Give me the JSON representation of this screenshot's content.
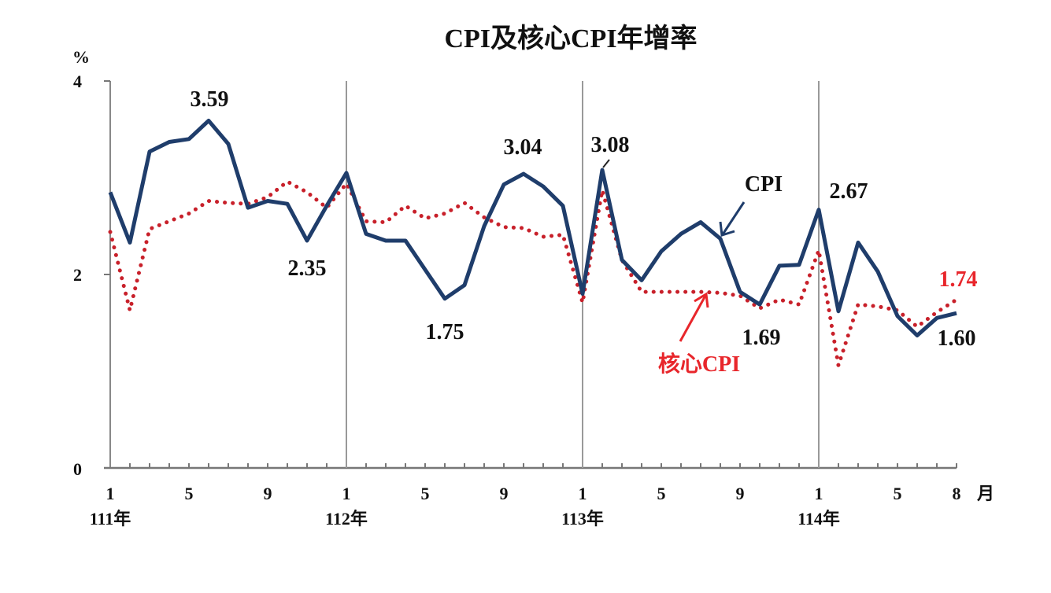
{
  "chart_data": {
    "type": "line",
    "title": "CPI及核心CPI年增率",
    "ylabel": "%",
    "xlabel": "月",
    "ylim": [
      0,
      4
    ],
    "yticks": [
      0,
      2,
      4
    ],
    "grid": false,
    "year_separators": [
      "111年",
      "112年",
      "113年",
      "114年"
    ],
    "x_tick_labels": [
      "1",
      "5",
      "9",
      "1",
      "5",
      "9",
      "1",
      "5",
      "9",
      "1",
      "5",
      "8"
    ],
    "x": [
      "111/1",
      "111/2",
      "111/3",
      "111/4",
      "111/5",
      "111/6",
      "111/7",
      "111/8",
      "111/9",
      "111/10",
      "111/11",
      "111/12",
      "112/1",
      "112/2",
      "112/3",
      "112/4",
      "112/5",
      "112/6",
      "112/7",
      "112/8",
      "112/9",
      "112/10",
      "112/11",
      "112/12",
      "113/1",
      "113/2",
      "113/3",
      "113/4",
      "113/5",
      "113/6",
      "113/7",
      "113/8",
      "113/9",
      "113/10",
      "113/11",
      "113/12",
      "114/1",
      "114/2",
      "114/3",
      "114/4",
      "114/5",
      "114/6",
      "114/7",
      "114/8"
    ],
    "series": [
      {
        "name": "CPI",
        "color": "#1f3d6b",
        "style": "solid",
        "values": [
          2.85,
          2.33,
          3.27,
          3.37,
          3.4,
          3.59,
          3.35,
          2.69,
          2.76,
          2.73,
          2.35,
          2.71,
          3.05,
          2.42,
          2.35,
          2.35,
          2.05,
          1.75,
          1.89,
          2.5,
          2.93,
          3.04,
          2.91,
          2.71,
          1.8,
          3.08,
          2.15,
          1.94,
          2.24,
          2.42,
          2.54,
          2.37,
          1.82,
          1.69,
          2.09,
          2.1,
          2.67,
          1.62,
          2.33,
          2.03,
          1.57,
          1.37,
          1.55,
          1.6
        ]
      },
      {
        "name": "核心CPI",
        "color": "#c8202a",
        "style": "dotted",
        "values": [
          2.44,
          1.63,
          2.47,
          2.55,
          2.63,
          2.76,
          2.74,
          2.73,
          2.8,
          2.96,
          2.85,
          2.69,
          2.94,
          2.55,
          2.54,
          2.71,
          2.58,
          2.63,
          2.74,
          2.59,
          2.49,
          2.48,
          2.39,
          2.41,
          1.71,
          2.87,
          2.15,
          1.82,
          1.82,
          1.82,
          1.82,
          1.81,
          1.78,
          1.65,
          1.74,
          1.69,
          2.25,
          1.06,
          1.69,
          1.67,
          1.63,
          1.46,
          1.61,
          1.74
        ]
      }
    ],
    "annotations": [
      {
        "text": "3.59",
        "series": "CPI",
        "x": "111/6"
      },
      {
        "text": "2.35",
        "series": "CPI",
        "x": "111/11"
      },
      {
        "text": "1.75",
        "series": "CPI",
        "x": "112/6"
      },
      {
        "text": "3.04",
        "series": "CPI",
        "x": "112/10"
      },
      {
        "text": "3.08",
        "series": "CPI",
        "x": "113/2"
      },
      {
        "text": "1.69",
        "series": "CPI",
        "x": "113/10"
      },
      {
        "text": "2.67",
        "series": "CPI",
        "x": "114/1"
      },
      {
        "text": "1.60",
        "series": "CPI",
        "x": "114/8"
      },
      {
        "text": "1.74",
        "series": "核心CPI",
        "x": "114/8",
        "color": "#e8262b"
      }
    ],
    "legend": [
      {
        "label": "CPI",
        "style": "arrow-label",
        "color": "#1f3d6b"
      },
      {
        "label": "核心CPI",
        "style": "arrow-label",
        "color": "#e8262b"
      }
    ]
  },
  "labels": {
    "title": "CPI及核心CPI年增率",
    "y_unit": "%",
    "x_unit": "月",
    "y_ticks": [
      "4",
      "2",
      "0"
    ],
    "legend_cpi": "CPI",
    "legend_core": "核心CPI",
    "anno": {
      "a359": "3.59",
      "a235": "2.35",
      "a175": "1.75",
      "a304": "3.04",
      "a308": "3.08",
      "a169": "1.69",
      "a267": "2.67",
      "a160": "1.60",
      "a174": "1.74"
    },
    "x_ticks": [
      "1",
      "5",
      "9",
      "1",
      "5",
      "9",
      "1",
      "5",
      "9",
      "1",
      "5",
      "8"
    ],
    "years": [
      "111年",
      "112年",
      "113年",
      "114年"
    ]
  }
}
